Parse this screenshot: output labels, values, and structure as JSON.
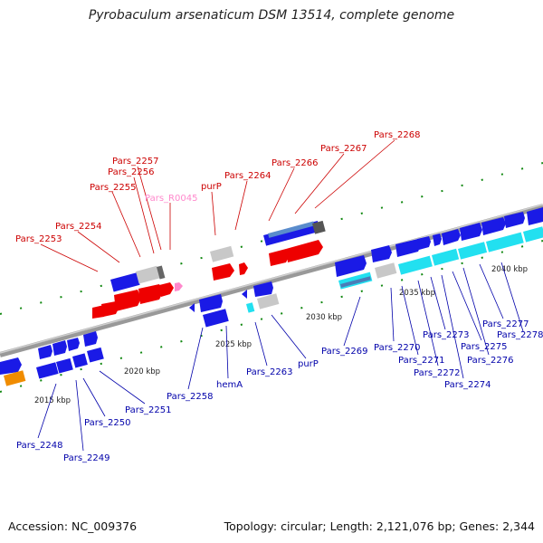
{
  "title": "Pyrobaculum arsenaticum DSM 13514, complete genome",
  "footer": {
    "accession": "Accession: NC_009376",
    "summary": "Topology: circular; Length: 2,121,076 bp; Genes: 2,344"
  },
  "colors": {
    "backbone": "#888888",
    "gene_red": "#ee0000",
    "gene_blue": "#1a1ae6",
    "gene_cyan": "#22e0f0",
    "gene_gray": "#c8c8c8",
    "gene_orange": "#f08c00",
    "rna_pink": "#ff88cc",
    "tick_green": "#118811",
    "label_red": "#cc0000",
    "label_blue": "#0000aa",
    "label_pink": "#ff88cc"
  },
  "kbp_ticks": [
    "2015 kbp",
    "2020 kbp",
    "2025 kbp",
    "2030 kbp",
    "2035 kbp",
    "2040 kbp"
  ],
  "labels_top": [
    {
      "text": "Pars_2253",
      "color": "red"
    },
    {
      "text": "Pars_2254",
      "color": "red"
    },
    {
      "text": "Pars_2255",
      "color": "red"
    },
    {
      "text": "Pars_2256",
      "color": "red"
    },
    {
      "text": "Pars_2257",
      "color": "red"
    },
    {
      "text": "Pars_R0045",
      "color": "pink"
    },
    {
      "text": "purP",
      "color": "red"
    },
    {
      "text": "Pars_2264",
      "color": "red"
    },
    {
      "text": "Pars_2266",
      "color": "red"
    },
    {
      "text": "Pars_2267",
      "color": "red"
    },
    {
      "text": "Pars_2268",
      "color": "red"
    }
  ],
  "labels_bottom": [
    {
      "text": "Pars_2248"
    },
    {
      "text": "Pars_2249"
    },
    {
      "text": "Pars_2250"
    },
    {
      "text": "Pars_2251"
    },
    {
      "text": "Pars_2258"
    },
    {
      "text": "hemA"
    },
    {
      "text": "Pars_2263"
    },
    {
      "text": "purP"
    },
    {
      "text": "Pars_2269"
    },
    {
      "text": "Pars_2270"
    },
    {
      "text": "Pars_2271"
    },
    {
      "text": "Pars_2272"
    },
    {
      "text": "Pars_2273"
    },
    {
      "text": "Pars_2274"
    },
    {
      "text": "Pars_2275"
    },
    {
      "text": "Pars_2276"
    },
    {
      "text": "Pars_2277"
    },
    {
      "text": "Pars_2278"
    }
  ]
}
